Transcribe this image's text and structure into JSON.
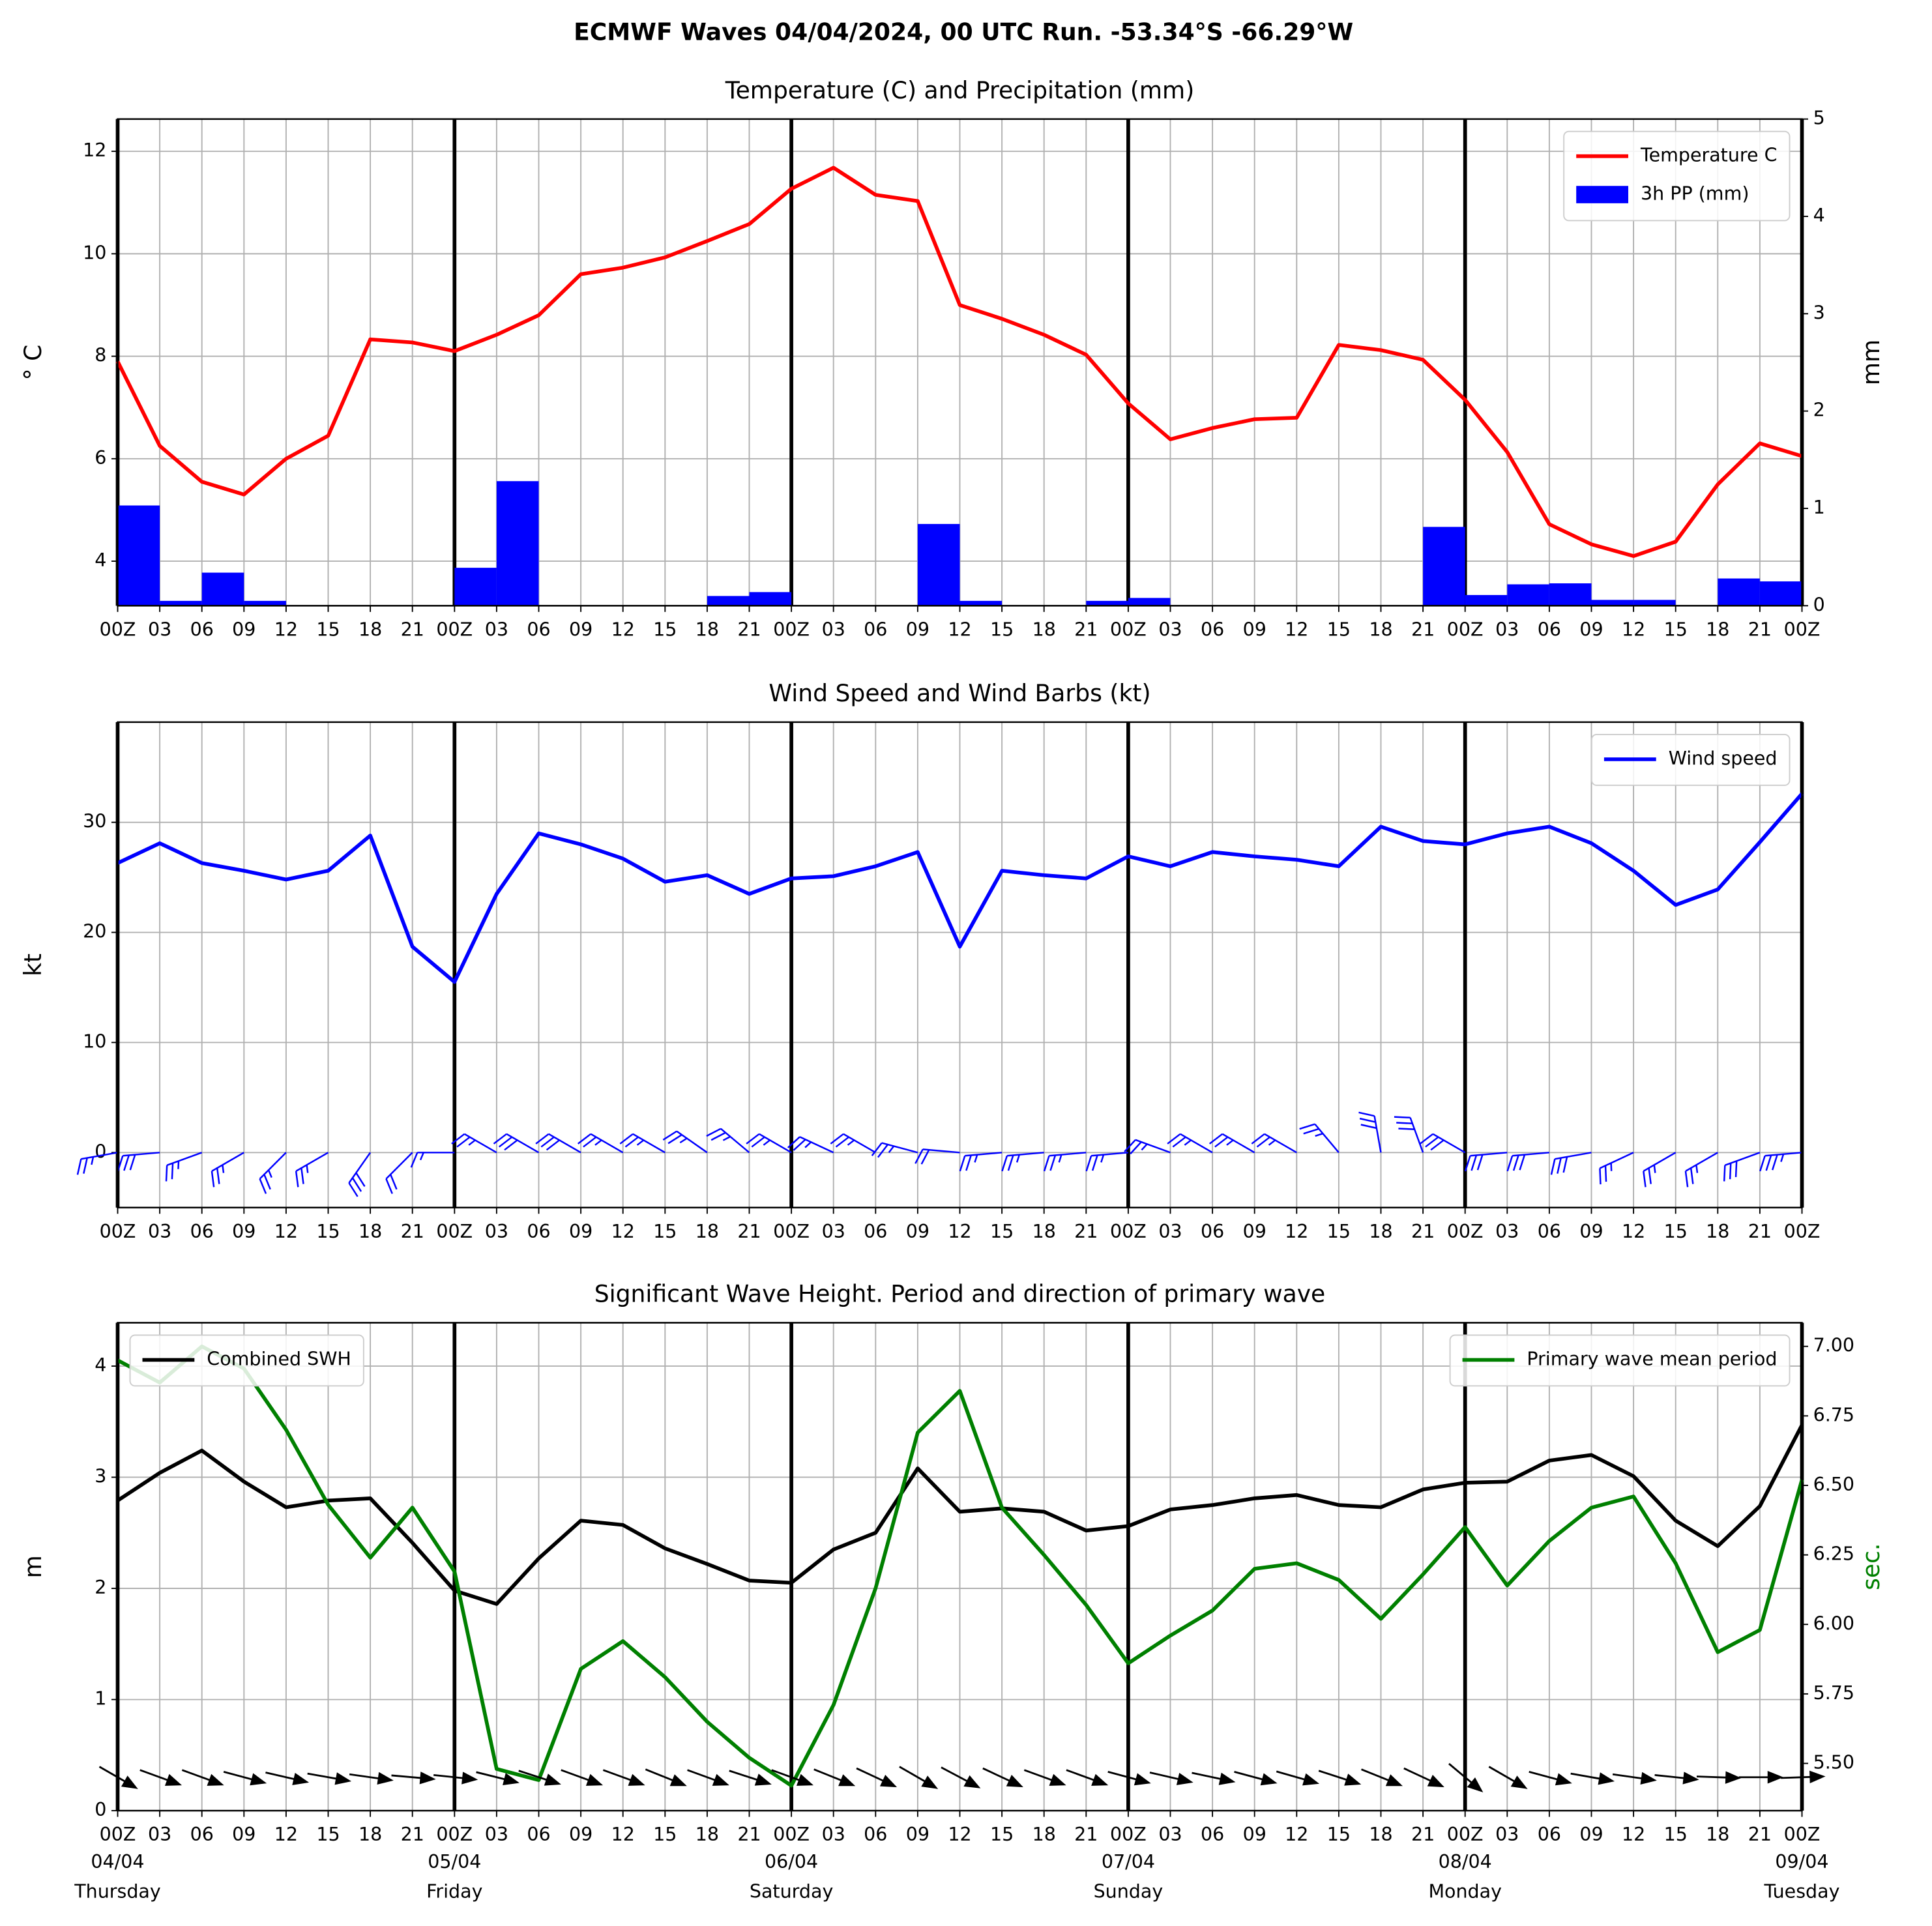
{
  "title": "ECMWF Waves 04/04/2024, 00 UTC Run. -53.34°S -66.29°W",
  "chart_data": [
    {
      "type": "combo",
      "title": "Temperature (C) and Precipitation (mm)",
      "categories": [
        "00Z",
        "03",
        "06",
        "09",
        "12",
        "15",
        "18",
        "21",
        "00Z",
        "03",
        "06",
        "09",
        "12",
        "15",
        "18",
        "21",
        "00Z",
        "03",
        "06",
        "09",
        "12",
        "15",
        "18",
        "21",
        "00Z",
        "03",
        "06",
        "09",
        "12",
        "15",
        "18",
        "21",
        "00Z",
        "03",
        "06",
        "09",
        "12",
        "15",
        "18",
        "21",
        "00Z"
      ],
      "ylabel": "° C",
      "y2label": "mm",
      "ylim": [
        3.13,
        12.63
      ],
      "yticks": [
        4,
        6,
        8,
        10,
        12
      ],
      "y2lim": [
        0,
        5
      ],
      "y2ticks": [
        0,
        1,
        2,
        3,
        4,
        5
      ],
      "grid": true,
      "legend": "upper right",
      "series": [
        {
          "name": "Temperature C",
          "type": "line",
          "color": "#ff0000",
          "values": [
            7.9,
            6.25,
            5.55,
            5.3,
            6.0,
            6.45,
            8.33,
            8.27,
            8.1,
            8.42,
            8.8,
            9.6,
            9.73,
            9.93,
            10.25,
            10.58,
            11.27,
            11.68,
            11.15,
            11.03,
            9.0,
            8.73,
            8.42,
            8.03,
            7.08,
            6.38,
            6.6,
            6.77,
            6.8,
            8.22,
            8.12,
            7.93,
            7.15,
            6.13,
            4.72,
            4.33,
            4.1,
            4.38,
            5.5,
            6.3,
            6.05
          ]
        },
        {
          "name": "3h PP (mm)",
          "type": "bar",
          "color": "#0000ff",
          "axis": "y2",
          "values": [
            1.03,
            0.05,
            0.34,
            0.05,
            0,
            0,
            0,
            0,
            0.39,
            1.28,
            0,
            0,
            0,
            0,
            0.1,
            0.14,
            0,
            0,
            0,
            0.84,
            0.05,
            0,
            0,
            0.05,
            0.08,
            0,
            0,
            0,
            0,
            0,
            0,
            0.81,
            0.11,
            0.22,
            0.23,
            0.06,
            0.06,
            0,
            0.28,
            0.25,
            null
          ]
        }
      ]
    },
    {
      "type": "combo",
      "title": "Wind Speed and Wind Barbs (kt)",
      "categories": [
        "00Z",
        "03",
        "06",
        "09",
        "12",
        "15",
        "18",
        "21",
        "00Z",
        "03",
        "06",
        "09",
        "12",
        "15",
        "18",
        "21",
        "00Z",
        "03",
        "06",
        "09",
        "12",
        "15",
        "18",
        "21",
        "00Z",
        "03",
        "06",
        "09",
        "12",
        "15",
        "18",
        "21",
        "00Z",
        "03",
        "06",
        "09",
        "12",
        "15",
        "18",
        "21",
        "00Z"
      ],
      "ylabel": "kt",
      "ylim": [
        -5,
        39.1
      ],
      "yticks": [
        0,
        10,
        20,
        30
      ],
      "grid": true,
      "legend": "upper right",
      "series": [
        {
          "name": "Wind speed",
          "type": "line",
          "color": "#0000ff",
          "values": [
            26.3,
            28.1,
            26.3,
            25.6,
            24.8,
            25.6,
            28.8,
            18.7,
            15.5,
            23.5,
            29.0,
            28.0,
            26.7,
            24.6,
            25.2,
            23.5,
            24.9,
            25.1,
            26.0,
            27.3,
            18.7,
            25.6,
            25.2,
            24.9,
            26.9,
            26.0,
            27.3,
            26.9,
            26.6,
            26.0,
            29.6,
            28.3,
            28.0,
            29.0,
            29.6,
            28.1,
            25.6,
            22.5,
            23.9,
            28.2,
            32.6
          ]
        }
      ],
      "barbs": {
        "color": "#0000ff",
        "directions": [
          260,
          265,
          250,
          240,
          225,
          240,
          215,
          225,
          270,
          300,
          300,
          300,
          300,
          300,
          305,
          310,
          300,
          295,
          300,
          285,
          275,
          265,
          265,
          265,
          265,
          290,
          300,
          300,
          300,
          320,
          350,
          340,
          300,
          265,
          265,
          260,
          245,
          240,
          240,
          250,
          265
        ]
      }
    },
    {
      "type": "combo",
      "title": "Significant Wave Height. Period and direction of primary wave",
      "categories": [
        "00Z",
        "03",
        "06",
        "09",
        "12",
        "15",
        "18",
        "21",
        "00Z",
        "03",
        "06",
        "09",
        "12",
        "15",
        "18",
        "21",
        "00Z",
        "03",
        "06",
        "09",
        "12",
        "15",
        "18",
        "21",
        "00Z",
        "03",
        "06",
        "09",
        "12",
        "15",
        "18",
        "21",
        "00Z",
        "03",
        "06",
        "09",
        "12",
        "15",
        "18",
        "21",
        "00Z"
      ],
      "dates": [
        "04/04",
        null,
        null,
        null,
        null,
        null,
        null,
        null,
        "05/04",
        null,
        null,
        null,
        null,
        null,
        null,
        null,
        "06/04",
        null,
        null,
        null,
        null,
        null,
        null,
        null,
        "07/04",
        null,
        null,
        null,
        null,
        null,
        null,
        null,
        "08/04",
        null,
        null,
        null,
        null,
        null,
        null,
        null,
        "09/04"
      ],
      "weekdays": [
        "Thursday",
        null,
        null,
        null,
        null,
        null,
        null,
        null,
        "Friday",
        null,
        null,
        null,
        null,
        null,
        null,
        null,
        "Saturday",
        null,
        null,
        null,
        null,
        null,
        null,
        null,
        "Sunday",
        null,
        null,
        null,
        null,
        null,
        null,
        null,
        "Monday",
        null,
        null,
        null,
        null,
        null,
        null,
        null,
        "Tuesday"
      ],
      "ylabel": "m",
      "y2label": "sec.",
      "ylim": [
        0,
        4.39
      ],
      "yticks": [
        0,
        1,
        2,
        3,
        4
      ],
      "y2lim": [
        5.33,
        7.085
      ],
      "y2ticks": [
        {
          "value": 5.5,
          "label": "5.50"
        },
        {
          "value": 5.75,
          "label": "5.75"
        },
        {
          "value": 6.0,
          "label": "6.00"
        },
        {
          "value": 6.25,
          "label": "6.25"
        },
        {
          "value": 6.5,
          "label": "6.50"
        },
        {
          "value": 6.75,
          "label": "6.75"
        },
        {
          "value": 7.0,
          "label": "7.00"
        }
      ],
      "grid": true,
      "series": [
        {
          "name": "Combined SWH",
          "type": "line",
          "color": "#000000",
          "legend": "upper left",
          "values": [
            2.79,
            3.04,
            3.24,
            2.96,
            2.73,
            2.79,
            2.81,
            2.41,
            1.98,
            1.86,
            2.27,
            2.61,
            2.57,
            2.36,
            2.22,
            2.07,
            2.05,
            2.35,
            2.5,
            3.08,
            2.69,
            2.72,
            2.69,
            2.52,
            2.56,
            2.71,
            2.75,
            2.81,
            2.84,
            2.75,
            2.73,
            2.89,
            2.95,
            2.96,
            3.15,
            3.2,
            3.01,
            2.61,
            2.38,
            2.74,
            3.47
          ]
        },
        {
          "name": "Primary wave mean period",
          "type": "line",
          "color": "#008000",
          "axis": "y2",
          "legend": "upper right",
          "values": [
            6.95,
            6.87,
            7.0,
            6.92,
            6.7,
            6.43,
            6.24,
            6.42,
            6.19,
            5.48,
            5.44,
            5.84,
            5.94,
            5.81,
            5.65,
            5.52,
            5.42,
            5.71,
            6.13,
            6.69,
            6.84,
            6.42,
            6.25,
            6.07,
            5.86,
            5.96,
            6.05,
            6.2,
            6.22,
            6.16,
            6.02,
            6.18,
            6.35,
            6.14,
            6.3,
            6.42,
            6.46,
            6.22,
            5.9,
            5.98,
            6.52
          ]
        }
      ],
      "arrows": {
        "color": "#000000",
        "directions": [
          300,
          290,
          290,
          285,
          283,
          280,
          278,
          275,
          276,
          284,
          288,
          290,
          290,
          292,
          290,
          288,
          290,
          292,
          295,
          300,
          298,
          295,
          290,
          290,
          285,
          283,
          282,
          285,
          286,
          288,
          292,
          295,
          310,
          300,
          285,
          280,
          278,
          276,
          272,
          270,
          268
        ]
      }
    }
  ]
}
